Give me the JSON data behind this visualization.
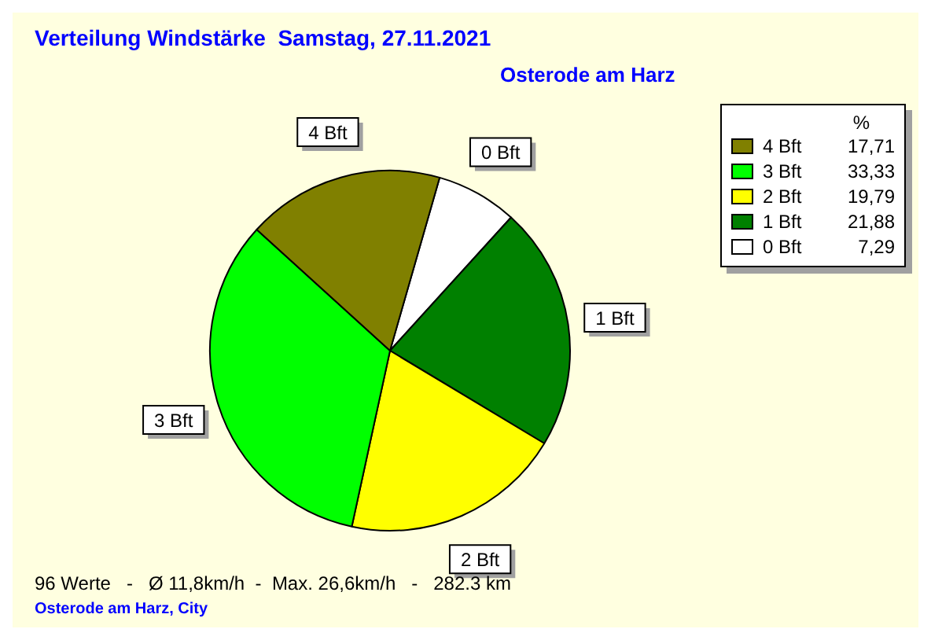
{
  "chart_data": {
    "type": "pie",
    "title": "Verteilung Windstärke  Samstag, 27.11.2021",
    "subtitle": "Osterode am Harz",
    "legend_title": "%",
    "categories": [
      "0 Bft",
      "1 Bft",
      "2 Bft",
      "3 Bft",
      "4 Bft"
    ],
    "values": [
      7.29,
      21.88,
      19.79,
      33.33,
      17.71
    ],
    "colors": [
      "#ffffff",
      "#008000",
      "#ffff00",
      "#00ff00",
      "#808000"
    ],
    "value_labels": [
      "7,29",
      "21,88",
      "19,79",
      "33,33",
      "17,71"
    ],
    "legend": "top right",
    "annotations": [
      "96 Werte   -   Ø 11,8km/h  -  Max. 26,6km/h   -   282.3 km",
      "Osterode am Harz, City"
    ]
  }
}
